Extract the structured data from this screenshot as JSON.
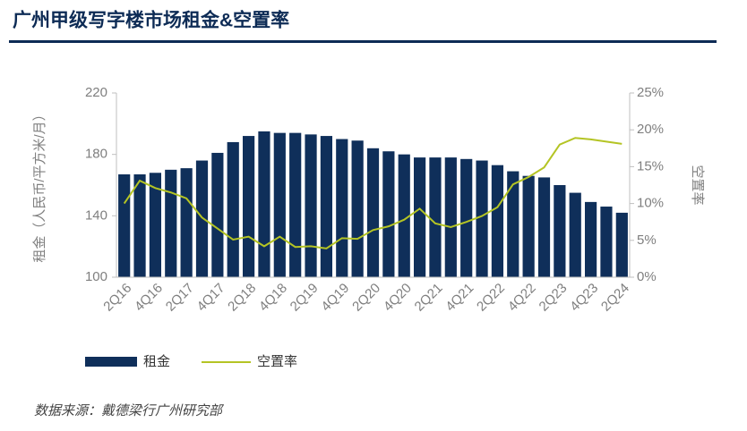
{
  "chart_data": {
    "type": "bar-line",
    "title": "广州甲级写字楼市场租金&空置率",
    "y_label": "租金（人民币/平方米/月）",
    "y2_label": "空置率",
    "source": "数据来源：戴德梁行广州研究部",
    "categories": [
      "2Q16",
      null,
      "4Q16",
      null,
      "2Q17",
      null,
      "4Q17",
      null,
      "2Q18",
      null,
      "4Q18",
      null,
      "2Q19",
      null,
      "4Q19",
      null,
      "2Q20",
      null,
      "4Q20",
      null,
      "2Q21",
      null,
      "4Q21",
      null,
      "2Q22",
      null,
      "4Q22",
      null,
      "2Q23",
      null,
      "4Q23",
      null,
      "2Q24"
    ],
    "series": [
      {
        "name": "租金",
        "type": "bar",
        "color": "#0f2f5a",
        "values": [
          167,
          167,
          168,
          170,
          171,
          176,
          181,
          188,
          192,
          195,
          194,
          194,
          193,
          192,
          190,
          189,
          184,
          182,
          180,
          178,
          178,
          178,
          177,
          176,
          173,
          169,
          166,
          165,
          160,
          155,
          149,
          146,
          142
        ]
      },
      {
        "name": "空置率",
        "type": "line",
        "axis": "y2",
        "color": "#b4c424",
        "values": [
          10.0,
          13.1,
          12.1,
          11.5,
          10.7,
          8.1,
          6.6,
          5.1,
          5.5,
          4.2,
          5.5,
          4.1,
          4.2,
          3.9,
          5.3,
          5.2,
          6.4,
          6.9,
          7.8,
          9.3,
          7.3,
          6.8,
          7.5,
          8.3,
          9.5,
          12.6,
          13.6,
          14.9,
          18.0,
          18.9,
          18.7,
          18.4,
          18.1
        ]
      }
    ],
    "ylim": [
      100,
      220
    ],
    "yticks": [
      100,
      140,
      180,
      220
    ],
    "y2lim": [
      0,
      25
    ],
    "y2ticks": [
      {
        "value": 0,
        "label": "0%"
      },
      {
        "value": 5,
        "label": "5%"
      },
      {
        "value": 10,
        "label": "10%"
      },
      {
        "value": 15,
        "label": "15%"
      },
      {
        "value": 20,
        "label": "20%"
      },
      {
        "value": 25,
        "label": "25%"
      }
    ]
  }
}
